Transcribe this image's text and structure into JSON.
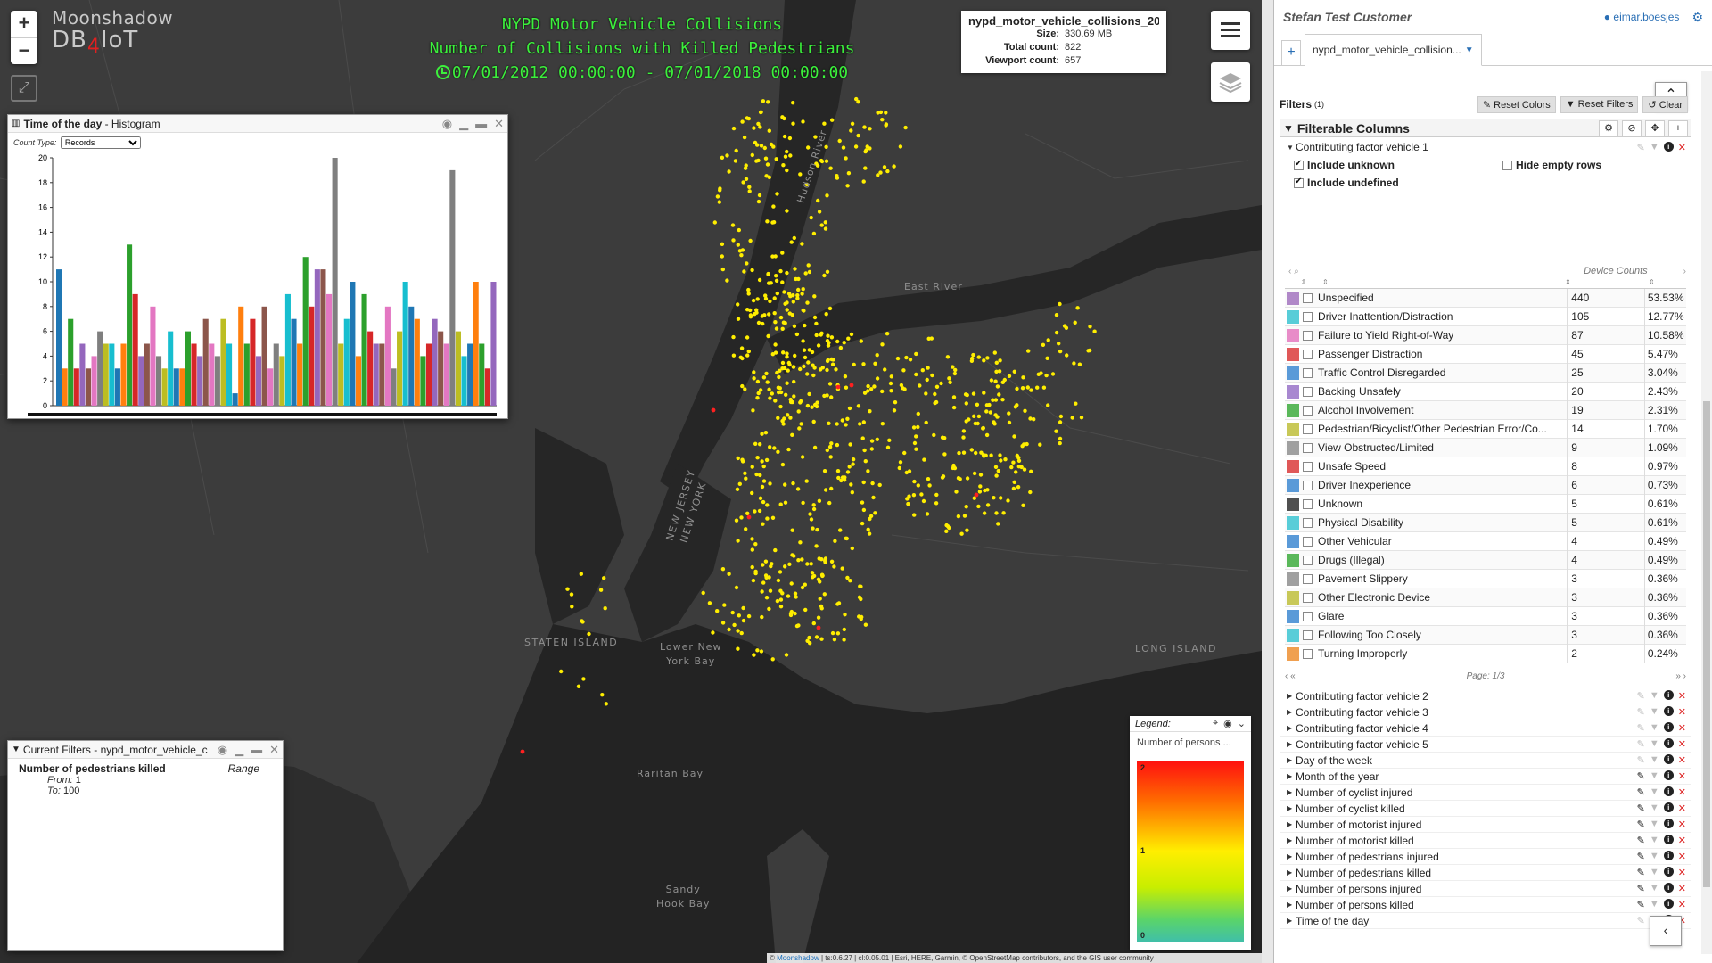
{
  "map": {
    "title_lines": [
      "NYPD Motor Vehicle Collisions",
      "Number of Collisions with Killed Pedestrians"
    ],
    "time_range": "07/01/2012 00:00:00 - 07/01/2018 00:00:00",
    "logo_line1": "Moonshadow",
    "logo_line2a": "DB",
    "logo_line2b": "4",
    "logo_line2c": "IoT",
    "zoom_in": "+",
    "zoom_out": "−",
    "labels": {
      "staten_island": "STATEN ISLAND",
      "long_island": "LONG ISLAND",
      "lower_ny_bay": "Lower New\nYork Bay",
      "raritan_bay": "Raritan Bay",
      "sandy_hook": "Sandy\nHook Bay",
      "east_river": "East River",
      "hudson_river": "Hudson River",
      "new_jersey": "NEW JERSEY",
      "new_york": "NEW YORK"
    },
    "dataset": {
      "name": "nypd_motor_vehicle_collisions_201...",
      "size_label": "Size:",
      "size": "330.69 MB",
      "total_label": "Total count:",
      "total": "822",
      "viewport_label": "Viewport count:",
      "viewport": "657"
    },
    "attribution": {
      "copy": "©",
      "link": "Moonshadow",
      "rest": " | ts:0.6.27 | cl:0.05.01 | Esri, HERE, Garmin, © OpenStreetMap contributors, and the GIS user community"
    },
    "point_color": "#ffee00",
    "point_color_high": "#ff2020"
  },
  "histogram": {
    "title_bold": "Time of the day",
    "title_rest": " - Histogram",
    "count_type_label": "Count Type:",
    "count_type_value": "Records"
  },
  "chart_data": {
    "type": "bar",
    "title": "Time of the day - Histogram",
    "xlabel": "",
    "ylabel": "",
    "ylim": [
      0,
      20
    ],
    "yticks": [
      0,
      2,
      4,
      6,
      8,
      10,
      12,
      14,
      16,
      18,
      20
    ],
    "values": [
      11,
      3,
      7,
      3,
      5,
      3,
      4,
      6,
      5,
      5,
      3,
      5,
      13,
      9,
      4,
      5,
      8,
      4,
      3,
      6,
      3,
      3,
      6,
      5,
      4,
      7,
      5,
      4,
      7,
      5,
      1,
      8,
      5,
      7,
      4,
      8,
      3,
      5,
      4,
      9,
      7,
      5,
      12,
      8,
      11,
      11,
      9,
      20,
      5,
      7,
      10,
      4,
      9,
      6,
      5,
      5,
      8,
      3,
      6,
      10,
      8,
      7,
      4,
      5,
      7,
      6,
      5,
      19,
      6,
      4,
      5,
      10,
      5,
      3,
      10
    ],
    "colors": [
      "#1f77b4",
      "#ff7f0e",
      "#2ca02c",
      "#d62728",
      "#9467bd",
      "#8c564b",
      "#e377c2",
      "#7f7f7f",
      "#bcbd22",
      "#17becf"
    ]
  },
  "current_filters": {
    "title": "Current Filters - nypd_motor_vehicle_c",
    "name": "Number of pedestrians killed",
    "type": "Range",
    "from_label": "From:",
    "from": "1",
    "to_label": "To:",
    "to": "100"
  },
  "legend": {
    "label": "Legend:",
    "title": "Number of persons ...",
    "max": "2",
    "mid": "1",
    "min": "0"
  },
  "sidebar": {
    "customer": "Stefan Test Customer",
    "user": "eimar.boesjes",
    "tab": "nypd_motor_vehicle_collision...",
    "filters_label": "Filters",
    "filters_count": "(1)",
    "reset_colors": "Reset Colors",
    "reset_filters": "Reset Filters",
    "clear": "Clear",
    "filterable_columns": "Filterable Columns",
    "open_column": "Contributing factor vehicle 1",
    "include_unknown": "Include unknown",
    "include_undefined": "Include undefined",
    "hide_empty_rows": "Hide empty rows",
    "device_counts": "Device Counts",
    "page": "Page: 1/3",
    "rows": [
      {
        "label": "Unspecified",
        "count": "440",
        "pct": "53.53%",
        "color": "#b088c8"
      },
      {
        "label": "Driver Inattention/Distraction",
        "count": "105",
        "pct": "12.77%",
        "color": "#58cdd8"
      },
      {
        "label": "Failure to Yield Right-of-Way",
        "count": "87",
        "pct": "10.58%",
        "color": "#e88cc8"
      },
      {
        "label": "Passenger Distraction",
        "count": "45",
        "pct": "5.47%",
        "color": "#e05858"
      },
      {
        "label": "Traffic Control Disregarded",
        "count": "25",
        "pct": "3.04%",
        "color": "#5a9ad8"
      },
      {
        "label": "Backing Unsafely",
        "count": "20",
        "pct": "2.43%",
        "color": "#a888d0"
      },
      {
        "label": "Alcohol Involvement",
        "count": "19",
        "pct": "2.31%",
        "color": "#5ab85a"
      },
      {
        "label": "Pedestrian/Bicyclist/Other Pedestrian Error/Co...",
        "count": "14",
        "pct": "1.70%",
        "color": "#c8c858"
      },
      {
        "label": "View Obstructed/Limited",
        "count": "9",
        "pct": "1.09%",
        "color": "#a0a0a0"
      },
      {
        "label": "Unsafe Speed",
        "count": "8",
        "pct": "0.97%",
        "color": "#e05858"
      },
      {
        "label": "Driver Inexperience",
        "count": "6",
        "pct": "0.73%",
        "color": "#5a9ad8"
      },
      {
        "label": "Unknown",
        "count": "5",
        "pct": "0.61%",
        "color": "#505050"
      },
      {
        "label": "Physical Disability",
        "count": "5",
        "pct": "0.61%",
        "color": "#58cdd8"
      },
      {
        "label": "Other Vehicular",
        "count": "4",
        "pct": "0.49%",
        "color": "#5a9ad8"
      },
      {
        "label": "Drugs (Illegal)",
        "count": "4",
        "pct": "0.49%",
        "color": "#5ab85a"
      },
      {
        "label": "Pavement Slippery",
        "count": "3",
        "pct": "0.36%",
        "color": "#a0a0a0"
      },
      {
        "label": "Other Electronic Device",
        "count": "3",
        "pct": "0.36%",
        "color": "#c8c858"
      },
      {
        "label": "Glare",
        "count": "3",
        "pct": "0.36%",
        "color": "#5a9ad8"
      },
      {
        "label": "Following Too Closely",
        "count": "3",
        "pct": "0.36%",
        "color": "#58cdd8"
      },
      {
        "label": "Turning Improperly",
        "count": "2",
        "pct": "0.24%",
        "color": "#f0a050"
      }
    ],
    "other_columns": [
      {
        "label": "Contributing factor vehicle 2",
        "edited": false
      },
      {
        "label": "Contributing factor vehicle 3",
        "edited": false
      },
      {
        "label": "Contributing factor vehicle 4",
        "edited": false
      },
      {
        "label": "Contributing factor vehicle 5",
        "edited": false
      },
      {
        "label": "Day of the week",
        "edited": false
      },
      {
        "label": "Month of the year",
        "edited": true
      },
      {
        "label": "Number of cyclist injured",
        "edited": true
      },
      {
        "label": "Number of cyclist killed",
        "edited": true
      },
      {
        "label": "Number of motorist injured",
        "edited": true
      },
      {
        "label": "Number of motorist killed",
        "edited": true
      },
      {
        "label": "Number of pedestrians injured",
        "edited": true
      },
      {
        "label": "Number of pedestrians killed",
        "edited": true
      },
      {
        "label": "Number of persons injured",
        "edited": true
      },
      {
        "label": "Number of persons killed",
        "edited": true
      },
      {
        "label": "Time of the day",
        "edited": false
      }
    ]
  }
}
